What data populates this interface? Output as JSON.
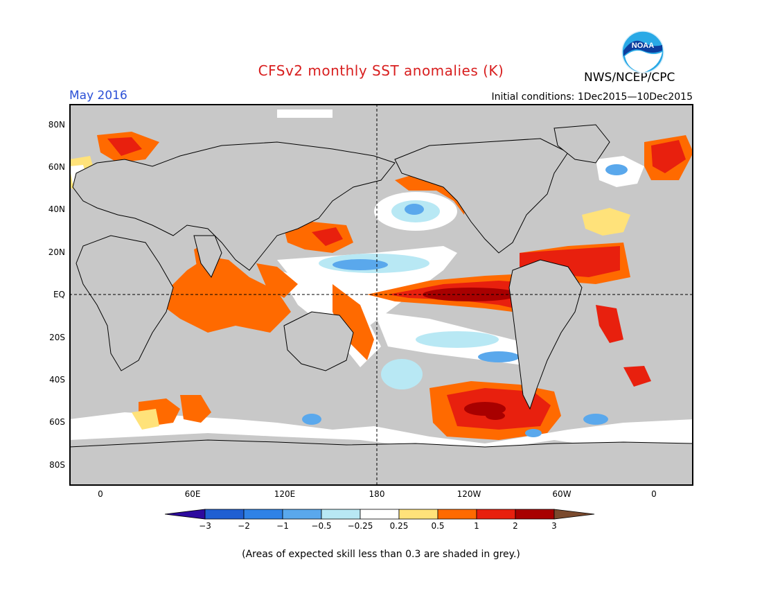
{
  "title": "CFSv2 monthly SST anomalies (K)",
  "org": "NWS/NCEP/CPC",
  "month": "May 2016",
  "initial": "Initial conditions: 1Dec2015—10Dec2015",
  "logo_text": "NOAA",
  "note": "(Areas of expected skill less than 0.3 are shaded in grey.)",
  "lat_labels": [
    "80N",
    "60N",
    "40N",
    "20N",
    "EQ",
    "20S",
    "40S",
    "60S",
    "80S"
  ],
  "lon_labels": [
    "0",
    "60E",
    "120E",
    "180",
    "120W",
    "60W",
    "0"
  ],
  "colorbar": {
    "labels": [
      "−3",
      "−2",
      "−1",
      "−0.5",
      "−0.25",
      "0.25",
      "0.5",
      "1",
      "2",
      "3"
    ],
    "colors": [
      "#2d0a9e",
      "#1f5fd2",
      "#2f82e6",
      "#5aa8ec",
      "#b8e8f4",
      "#ffffff",
      "#ffe27a",
      "#ff6a00",
      "#e8200e",
      "#a80000",
      "#7a4a2e"
    ]
  },
  "colors": {
    "land": "#c8c8c8",
    "title": "#d81e1e",
    "month": "#2a4fd6"
  }
}
